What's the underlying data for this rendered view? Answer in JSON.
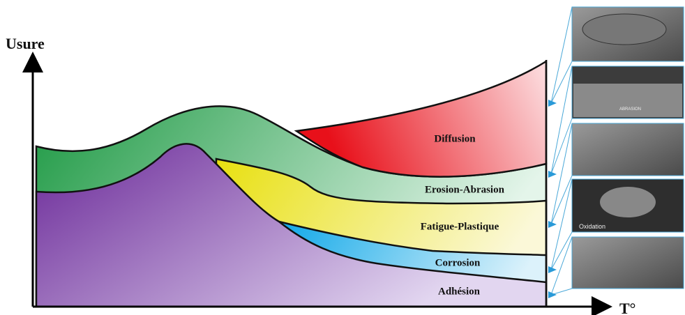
{
  "axes": {
    "y_label": "Usure",
    "x_label": "T°"
  },
  "regions": [
    {
      "label": "Diffusion"
    },
    {
      "label": "Erosion-Abrasion"
    },
    {
      "label": "Fatigue-Plastique"
    },
    {
      "label": "Corrosion"
    },
    {
      "label": "Adhésion"
    }
  ],
  "micrographs": [
    {
      "caption": null
    },
    {
      "caption": "ABRASION"
    },
    {
      "caption": null
    },
    {
      "caption": "Oxidation"
    },
    {
      "caption": null
    }
  ]
}
